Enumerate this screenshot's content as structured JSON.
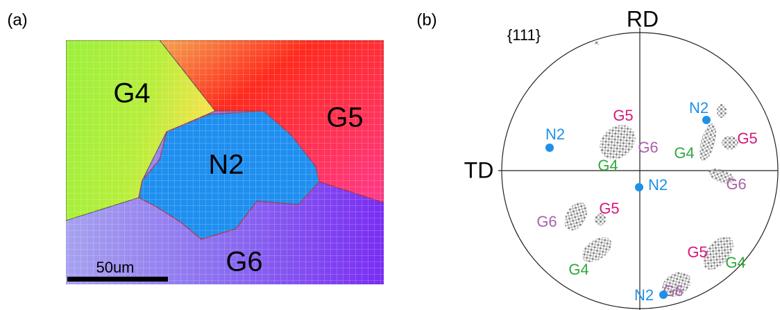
{
  "panel_a": {
    "label": "(a)",
    "grains": [
      "G4",
      "G5",
      "N2",
      "G6"
    ],
    "scale_bar": "50um"
  },
  "panel_b": {
    "label": "(b)",
    "title": "{111}",
    "axis_top": "RD",
    "axis_left": "TD",
    "labels": [
      {
        "text": "G5",
        "color": "#d6157a"
      },
      {
        "text": "N2",
        "color": "#1e90e8"
      },
      {
        "text": "G5",
        "color": "#d6157a"
      },
      {
        "text": "G6",
        "color": "#a862a8"
      },
      {
        "text": "G4",
        "color": "#2fa83a"
      },
      {
        "text": "N2",
        "color": "#1e90e8"
      },
      {
        "text": "G4",
        "color": "#2fa83a"
      },
      {
        "text": "N2",
        "color": "#1e90e8"
      },
      {
        "text": "G6",
        "color": "#a862a8"
      },
      {
        "text": "G5",
        "color": "#d6157a"
      },
      {
        "text": "G6",
        "color": "#a862a8"
      },
      {
        "text": "G5",
        "color": "#d6157a"
      },
      {
        "text": "G4",
        "color": "#2fa83a"
      },
      {
        "text": "G4",
        "color": "#2fa83a"
      },
      {
        "text": "G6",
        "color": "#a862a8"
      },
      {
        "text": "N2",
        "color": "#1e90e8"
      }
    ]
  }
}
